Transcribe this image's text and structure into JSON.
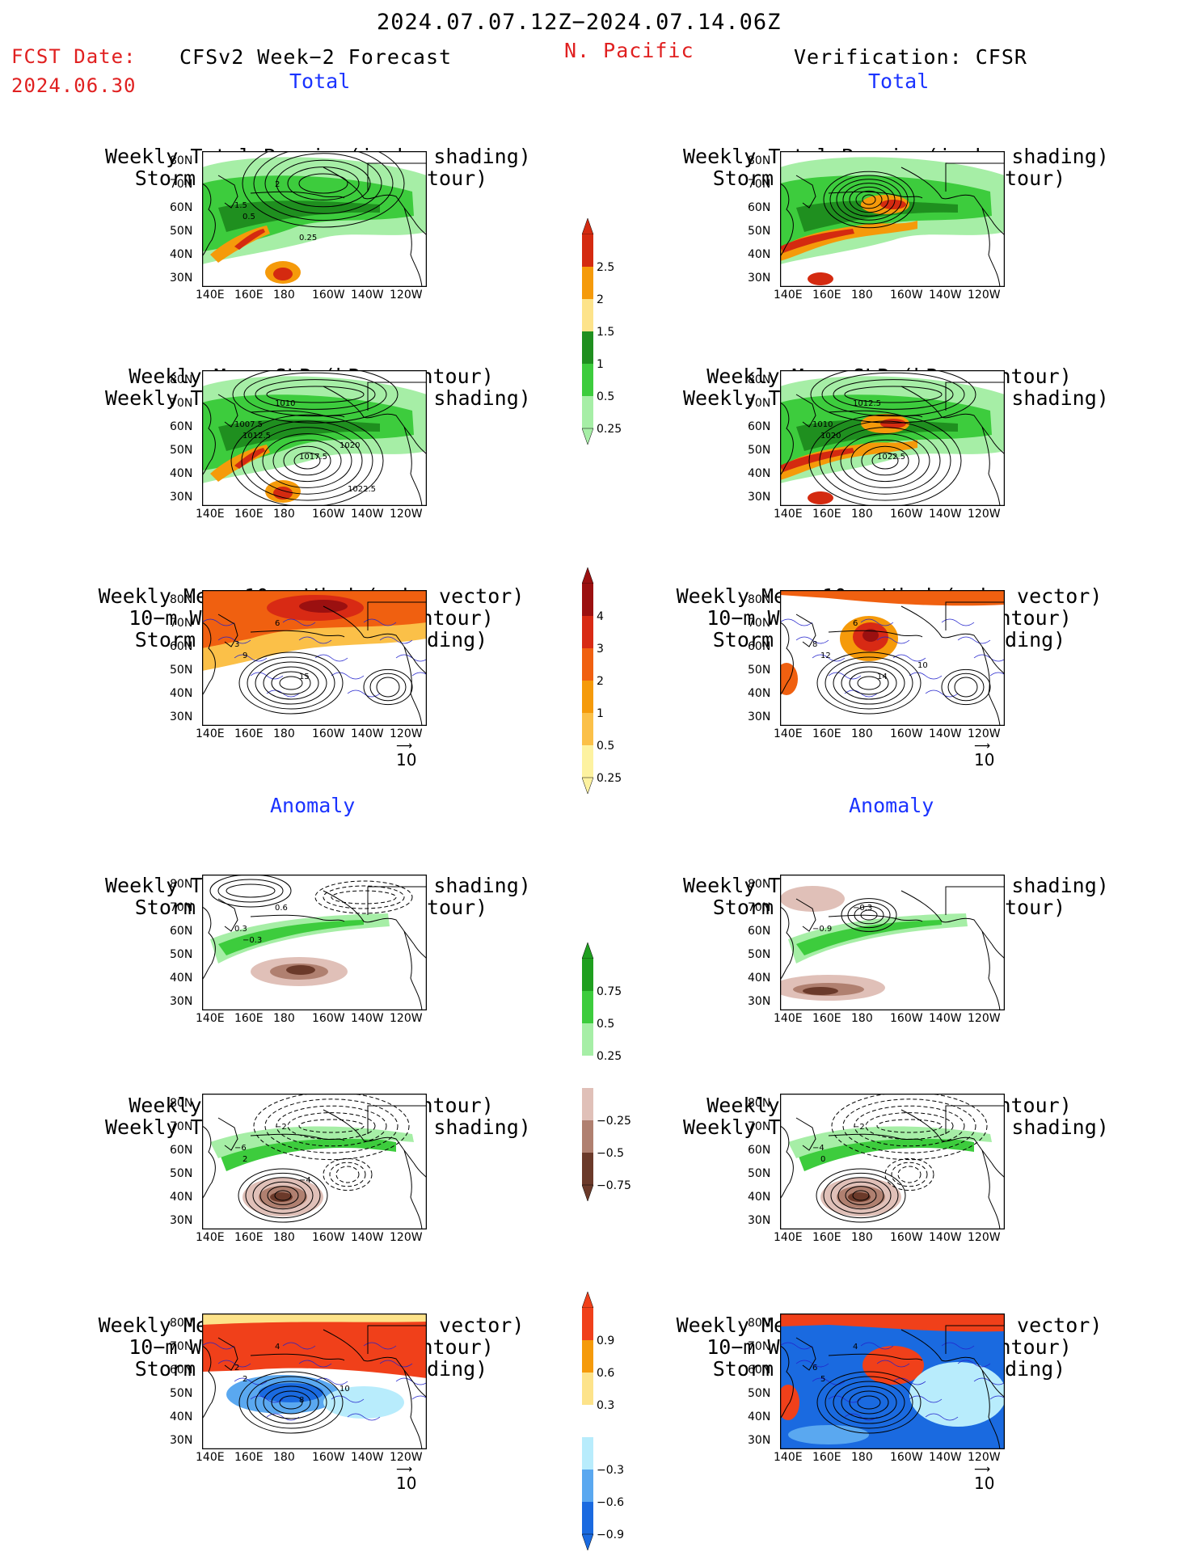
{
  "header": {
    "date_range": "2024.07.07.12Z−2024.07.14.06Z",
    "fcst_label": "FCST Date:",
    "fcst_date": "2024.06.30",
    "model": "CFSv2 Week−2 Forecast",
    "region": "N. Pacific",
    "verification": "Verification: CFSR"
  },
  "sections": {
    "total": "Total",
    "anomaly": "Anomaly"
  },
  "panel_titles": {
    "precip_storm": [
      "Weekly Total Precip (inch, shading)",
      "Storm Track Density (contour)"
    ],
    "slp_precip": [
      "Weekly Mean SLP (hPa, contour)",
      "Weekly Total Precip (inch, shading)"
    ],
    "wind_storm": [
      "Weekly Mean 10−m Wind (mph, vector)",
      "10−m Wind Speed (mph, contour)",
      "Storm Track Density (shading)"
    ]
  },
  "axes": {
    "lat_labels": [
      "80N",
      "70N",
      "60N",
      "50N",
      "40N",
      "30N"
    ],
    "lon_labels": [
      "140E",
      "160E",
      "180",
      "160W",
      "140W",
      "120W"
    ]
  },
  "vector_ref": "10",
  "colorbars": {
    "precip_total": {
      "labels": [
        "2.5",
        "2",
        "1.5",
        "1",
        "0.5",
        "0.25"
      ],
      "colors": [
        "#d42a10",
        "#f59a0a",
        "#fde38a",
        "#1f8f1f",
        "#3dcc3d",
        "#a6eea6"
      ]
    },
    "storm_total": {
      "labels": [
        "4",
        "3",
        "2",
        "1",
        "0.5",
        "0.25"
      ],
      "colors": [
        "#9b1010",
        "#d82a14",
        "#f06010",
        "#f59a0a",
        "#fbc048",
        "#fdf2a0"
      ]
    },
    "precip_anom": {
      "labels": [
        "0.75",
        "0.5",
        "0.25",
        "−0.25",
        "−0.5",
        "−0.75"
      ],
      "colors": [
        "#1f9f1f",
        "#3dcc3d",
        "#a6eea6",
        "#ffffff",
        "#e0c0b8",
        "#b08070",
        "#6b3a2a"
      ]
    },
    "storm_anom": {
      "labels": [
        "0.9",
        "0.6",
        "0.3",
        "−0.3",
        "−0.6",
        "−0.9"
      ],
      "colors": [
        "#f0401a",
        "#f59a0a",
        "#fde38a",
        "#ffffff",
        "#b8ecfc",
        "#5aa8f0",
        "#1a6ae0"
      ]
    }
  },
  "panels": [
    {
      "id": "fc-precip-storm",
      "kind": "precip_storm",
      "labels": [
        "2",
        "1.5",
        "0.5",
        "0.25"
      ]
    },
    {
      "id": "fc-slp-precip",
      "kind": "slp_precip",
      "labels": [
        "1010",
        "1007.5",
        "1012.5",
        "1017.5",
        "1020",
        "1022.5"
      ]
    },
    {
      "id": "fc-wind-storm",
      "kind": "wind_storm",
      "labels": [
        "6",
        "3",
        "9",
        "15"
      ]
    },
    {
      "id": "vf-precip-storm",
      "kind": "precip_storm",
      "labels": []
    },
    {
      "id": "vf-slp-precip",
      "kind": "slp_precip",
      "labels": [
        "1012.5",
        "1010",
        "1020",
        "1022.5"
      ]
    },
    {
      "id": "vf-wind-storm",
      "kind": "wind_storm",
      "labels": [
        "6",
        "8",
        "12",
        "14",
        "10"
      ]
    },
    {
      "id": "fc-anom-precip-storm",
      "kind": "anom_precip",
      "labels": [
        "0.6",
        "0.3",
        "−0.3"
      ]
    },
    {
      "id": "fc-anom-slp-precip",
      "kind": "anom_slp",
      "labels": [
        "−2",
        "−6",
        "2",
        "−4"
      ]
    },
    {
      "id": "fc-anom-wind-storm",
      "kind": "anom_wind",
      "labels": [
        "4",
        "2",
        "2",
        "8",
        "10"
      ]
    },
    {
      "id": "vf-anom-precip-storm",
      "kind": "anom_precip",
      "labels": [
        "−0.3",
        "−0.9"
      ]
    },
    {
      "id": "vf-anom-slp-precip",
      "kind": "anom_slp",
      "labels": [
        "−2",
        "−4",
        "0"
      ]
    },
    {
      "id": "vf-anom-wind-storm",
      "kind": "anom_wind",
      "labels": [
        "4",
        "6",
        "5"
      ]
    }
  ]
}
